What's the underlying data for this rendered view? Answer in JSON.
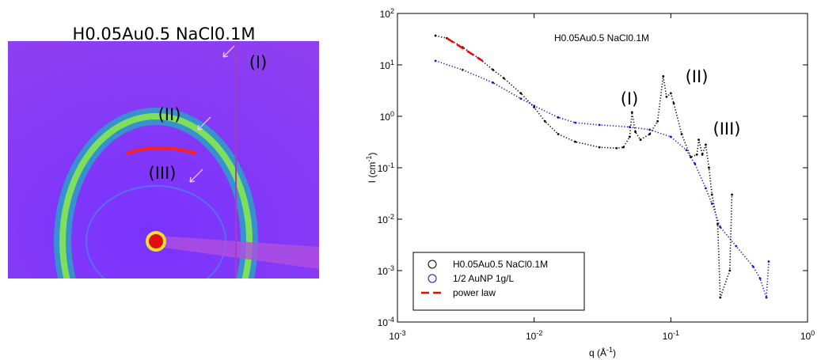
{
  "image": {
    "title": "H0.05Au0.5 NaCl0.1M",
    "labels": [
      "(I)",
      "(II)",
      "(III)"
    ]
  },
  "chart_data": {
    "type": "scatter",
    "title": "H0.05Au0.5 NaCl0.1M",
    "xlabel": [
      "q (Å",
      "-1",
      ")"
    ],
    "ylabel": [
      "I (cm",
      "-1",
      ")"
    ],
    "annotations": [
      "(I)",
      "(II)",
      "(III)"
    ],
    "xscale": "log",
    "yscale": "log",
    "xlim": [
      0.001,
      1
    ],
    "ylim": [
      0.0001,
      100
    ],
    "xticks": [
      {
        "value": 0.001,
        "label": "10",
        "sup": "-3"
      },
      {
        "value": 0.01,
        "label": "10",
        "sup": "-2"
      },
      {
        "value": 0.1,
        "label": "10",
        "sup": "-1"
      },
      {
        "value": 1,
        "label": "10",
        "sup": "0"
      }
    ],
    "yticks": [
      {
        "value": 0.0001,
        "label": "10",
        "sup": "-4"
      },
      {
        "value": 0.001,
        "label": "10",
        "sup": "-3"
      },
      {
        "value": 0.01,
        "label": "10",
        "sup": "-2"
      },
      {
        "value": 0.1,
        "label": "10",
        "sup": "-1"
      },
      {
        "value": 1,
        "label": "10",
        "sup": "0"
      },
      {
        "value": 10,
        "label": "10",
        "sup": "1"
      },
      {
        "value": 100,
        "label": "10",
        "sup": "2"
      }
    ],
    "legend": "lower left",
    "series": [
      {
        "name": "H0.05Au0.5 NaCl0.1M",
        "color": "#000000",
        "style": "points",
        "x": [
          0.0019,
          0.0023,
          0.003,
          0.004,
          0.005,
          0.006,
          0.008,
          0.01,
          0.012,
          0.015,
          0.02,
          0.03,
          0.04,
          0.045,
          0.05,
          0.052,
          0.055,
          0.06,
          0.07,
          0.08,
          0.088,
          0.093,
          0.1,
          0.105,
          0.12,
          0.14,
          0.155,
          0.16,
          0.17,
          0.18,
          0.19,
          0.2,
          0.22,
          0.23,
          0.27,
          0.28
        ],
        "values": [
          37,
          33,
          22,
          13,
          8,
          5.5,
          2.8,
          1.5,
          0.8,
          0.45,
          0.32,
          0.25,
          0.24,
          0.25,
          0.4,
          1.2,
          0.5,
          0.35,
          0.45,
          0.8,
          6,
          2.4,
          2.8,
          1.8,
          0.45,
          0.16,
          0.18,
          0.35,
          0.18,
          0.28,
          0.1,
          0.03,
          0.008,
          0.0003,
          0.001,
          0.03
        ]
      },
      {
        "name": "1/2 AuNP 1g/L",
        "color": "#1010d0",
        "style": "points",
        "x": [
          0.0019,
          0.003,
          0.005,
          0.008,
          0.01,
          0.015,
          0.02,
          0.03,
          0.05,
          0.07,
          0.1,
          0.13,
          0.15,
          0.18,
          0.2,
          0.23,
          0.3,
          0.4,
          0.45,
          0.5,
          0.52
        ],
        "values": [
          12,
          8,
          4.5,
          2.2,
          1.6,
          0.95,
          0.75,
          0.68,
          0.62,
          0.55,
          0.4,
          0.22,
          0.12,
          0.04,
          0.02,
          0.007,
          0.003,
          0.0012,
          0.0007,
          0.0003,
          0.0015
        ]
      },
      {
        "name": "power law",
        "color": "#ff0000",
        "style": "dashed",
        "x": [
          0.0023,
          0.0042
        ],
        "values": [
          33,
          12
        ]
      }
    ]
  }
}
